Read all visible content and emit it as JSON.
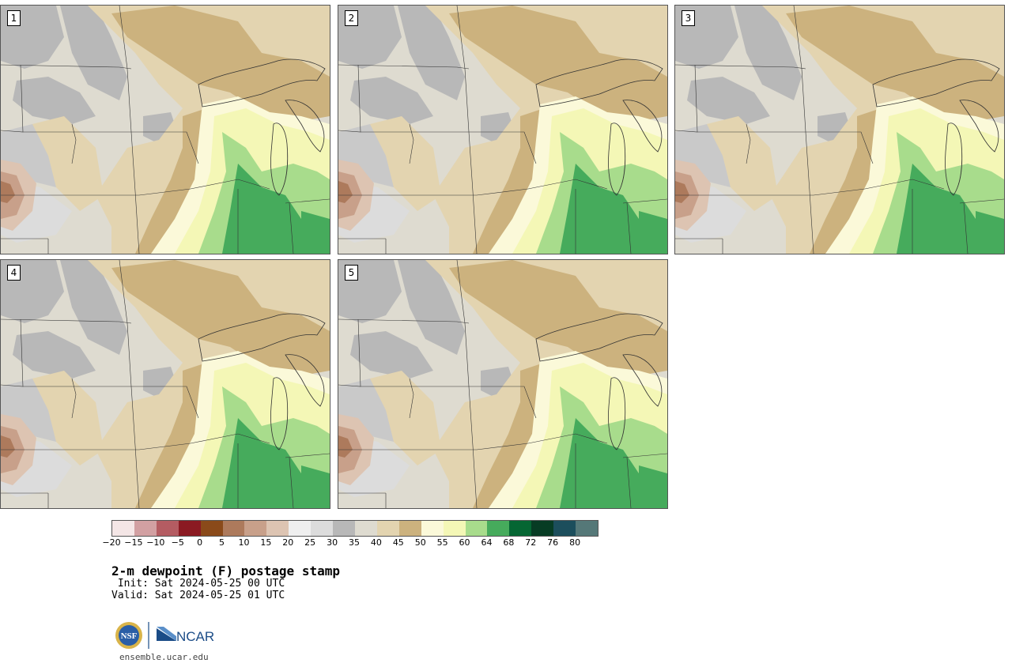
{
  "panels": [
    {
      "label": "1"
    },
    {
      "label": "2"
    },
    {
      "label": "3"
    },
    {
      "label": "4"
    },
    {
      "label": "5"
    }
  ],
  "colorbar": {
    "colors": [
      "#f4e6e6",
      "#d2a0a2",
      "#b45c62",
      "#8b1a22",
      "#8a4a1a",
      "#ad7a5c",
      "#c8a08a",
      "#ddc4b2",
      "#efefef",
      "#dcdcdc",
      "#b8b8b8",
      "#dedbd0",
      "#e3d4b0",
      "#ccb27e",
      "#fbf9d9",
      "#f4f7b6",
      "#a8dc8c",
      "#46ab5c",
      "#056633",
      "#073c24",
      "#1c4e5c",
      "#557878"
    ],
    "ticks": [
      "−20",
      "−15",
      "−10",
      "−5",
      "0",
      "5",
      "10",
      "15",
      "20",
      "25",
      "30",
      "35",
      "40",
      "45",
      "50",
      "55",
      "60",
      "64",
      "68",
      "72",
      "76",
      "80"
    ]
  },
  "title": "2-m dewpoint (F) postage stamp",
  "init": " Init: Sat 2024-05-25 00 UTC",
  "valid": "Valid: Sat 2024-05-25 01 UTC",
  "logos": {
    "nsf": "NSF",
    "ncar": "NCAR"
  },
  "site": "ensemble.ucar.edu"
}
